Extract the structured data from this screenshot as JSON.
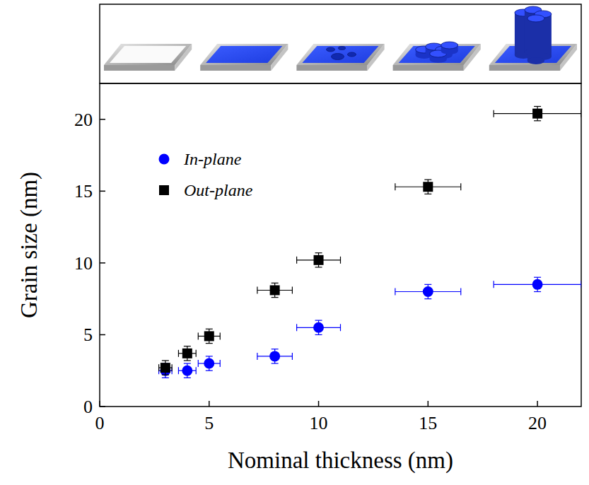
{
  "chart_data": {
    "type": "scatter",
    "x_label": "Nominal thickness (nm)",
    "y_label": "Grain size (nm)",
    "x": [
      3,
      4,
      5,
      8,
      10,
      15,
      20
    ],
    "x_errors": [
      0.3,
      0.4,
      0.5,
      0.8,
      1.0,
      1.5,
      2.0
    ],
    "xlim": [
      0,
      22
    ],
    "ylim": [
      0,
      22.5
    ],
    "xticks": [
      0,
      5,
      10,
      15,
      20
    ],
    "yticks": [
      0,
      5,
      10,
      15,
      20
    ],
    "legend": "upper left",
    "series": [
      {
        "name": "In-plane",
        "color": "#0000ff",
        "marker": "circle",
        "values": [
          2.5,
          2.5,
          3.0,
          3.5,
          5.5,
          8.0,
          8.5
        ],
        "y_errors": [
          0.5,
          0.5,
          0.5,
          0.5,
          0.5,
          0.5,
          0.5
        ]
      },
      {
        "name": "Out-plane",
        "color": "#000000",
        "marker": "square",
        "values": [
          2.7,
          3.7,
          4.9,
          8.1,
          10.2,
          15.3,
          20.4
        ],
        "y_errors": [
          0.5,
          0.5,
          0.5,
          0.5,
          0.5,
          0.5,
          0.5
        ]
      }
    ]
  }
}
